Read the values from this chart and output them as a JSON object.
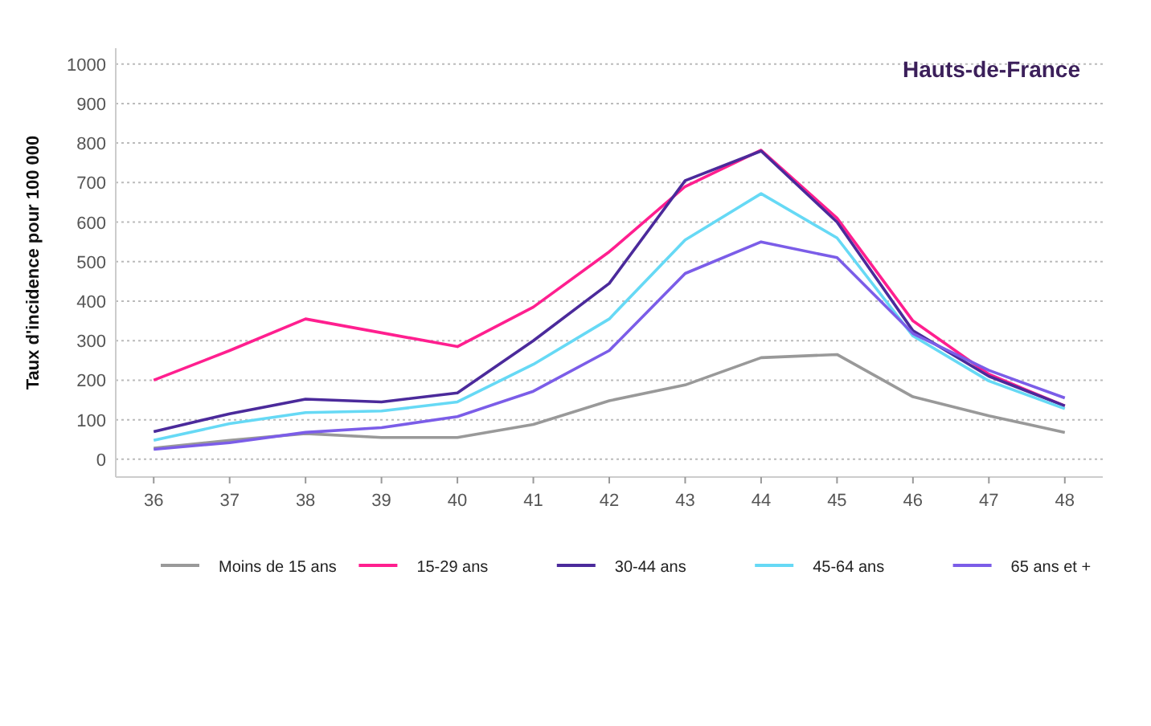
{
  "chart_data": {
    "type": "line",
    "title": "Hauts-de-France",
    "ylabel": "Taux d'incidence pour 100 000",
    "x": [
      36,
      37,
      38,
      39,
      40,
      41,
      42,
      43,
      44,
      45,
      46,
      47,
      48
    ],
    "xlim": [
      35.5,
      48.5
    ],
    "xticks": [
      36,
      37,
      38,
      39,
      40,
      41,
      42,
      43,
      44,
      45,
      46,
      47,
      48
    ],
    "ylim": [
      -45,
      1040
    ],
    "yticks": [
      0,
      100,
      200,
      300,
      400,
      500,
      600,
      700,
      800,
      900,
      1000
    ],
    "grid": "y",
    "legend": "bottom",
    "marker": "none",
    "line_style": "solid",
    "series": [
      {
        "name": "Moins de 15 ans",
        "color": "#999999",
        "values": [
          28,
          48,
          65,
          55,
          55,
          88,
          148,
          188,
          257,
          265,
          158,
          110,
          68
        ]
      },
      {
        "name": "15-29 ans",
        "color": "#ff1f8f",
        "values": [
          200,
          275,
          355,
          320,
          285,
          385,
          525,
          690,
          782,
          610,
          350,
          215,
          135
        ]
      },
      {
        "name": "30-44 ans",
        "color": "#4b2a9b",
        "values": [
          70,
          115,
          152,
          145,
          168,
          300,
          445,
          705,
          780,
          600,
          325,
          210,
          135
        ]
      },
      {
        "name": "45-64 ans",
        "color": "#66d9f5",
        "values": [
          48,
          90,
          118,
          122,
          145,
          240,
          355,
          555,
          672,
          560,
          312,
          198,
          128
        ]
      },
      {
        "name": "65 ans et +",
        "color": "#7b5de8",
        "values": [
          25,
          42,
          68,
          80,
          108,
          172,
          275,
          470,
          550,
          510,
          318,
          225,
          155
        ]
      }
    ]
  }
}
